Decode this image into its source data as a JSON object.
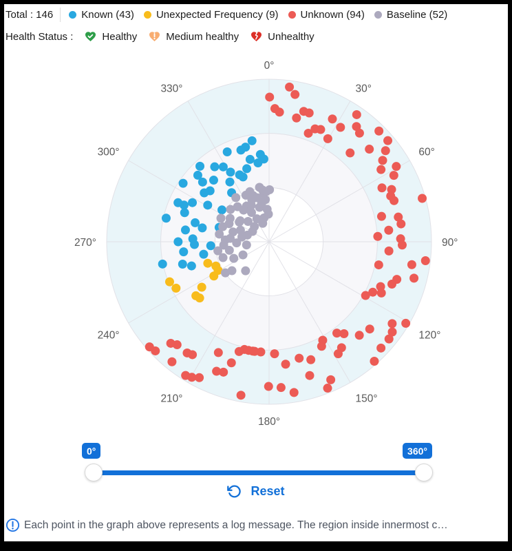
{
  "header": {
    "total_label": "Total : 146",
    "legend": [
      {
        "label": "Known (43)",
        "color": "#29A8E0"
      },
      {
        "label": "Unexpected Frequency (9)",
        "color": "#F8BC1C"
      },
      {
        "label": "Unknown (94)",
        "color": "#EC5B55"
      },
      {
        "label": "Baseline (52)",
        "color": "#ACA9BE"
      }
    ],
    "health_status_label": "Health Status :",
    "health_items": [
      {
        "label": "Healthy",
        "icon": "heart-check-icon",
        "color": "#2E9E49"
      },
      {
        "label": "Medium healthy",
        "icon": "heart-exclamation-icon",
        "color": "#F8AD71"
      },
      {
        "label": "Unhealthy",
        "icon": "heart-broken-icon",
        "color": "#DC2F27"
      }
    ]
  },
  "slider": {
    "min_label": "0°",
    "max_label": "360°",
    "reset_label": "Reset"
  },
  "footer": {
    "info_text": "Each point in the graph above represents a log message. The region inside innermost c…"
  },
  "colors": {
    "accent": "#1270D8",
    "grid": "#E1E1E7",
    "axis_label": "#595959",
    "ring_outer": "#E9F5F9",
    "ring_middle": "#F7F7FA",
    "ring_inner": "#FFFFFF",
    "info_icon": "#2577E4",
    "divider": "#DCDCDC"
  },
  "chart_data": {
    "type": "scatter",
    "coordinate_system": "polar",
    "angle_unit": "degrees",
    "angle_direction": "clockwise",
    "angle_start": "top",
    "angle_ticks": [
      "0°",
      "30°",
      "60°",
      "90°",
      "120°",
      "150°",
      "180°",
      "210°",
      "240°",
      "270°",
      "300°",
      "330°"
    ],
    "radius_range": [
      0,
      1
    ],
    "ring_fractions": [
      0.333,
      0.667,
      1
    ],
    "total": 146,
    "points_format": "[angle_deg, radius_norm]",
    "series": [
      {
        "id": "known",
        "name": "Known",
        "count": 43,
        "color": "#29A8E0",
        "points": [
          [
            350.4,
            0.63
          ],
          [
            335,
            0.61
          ],
          [
            342.9,
            0.59
          ],
          [
            346,
            0.6
          ],
          [
            354.3,
            0.54
          ],
          [
            356.4,
            0.51
          ],
          [
            352,
            0.49
          ],
          [
            317.5,
            0.63
          ],
          [
            328.5,
            0.54
          ],
          [
            304.2,
            0.64
          ],
          [
            311.9,
            0.55
          ],
          [
            310.8,
            0.48
          ],
          [
            326.7,
            0.44
          ],
          [
            322.6,
            0.38
          ],
          [
            336.2,
            0.45
          ],
          [
            338.1,
            0.43
          ],
          [
            293.2,
            0.61
          ],
          [
            293.3,
            0.57
          ],
          [
            300.8,
            0.44
          ],
          [
            304,
            0.35
          ],
          [
            282.9,
            0.65
          ],
          [
            284.4,
            0.47
          ],
          [
            281.7,
            0.42
          ],
          [
            272.2,
            0.47
          ],
          [
            286,
            0.32
          ],
          [
            258.2,
            0.67
          ],
          [
            255.5,
            0.55
          ],
          [
            252.7,
            0.5
          ],
          [
            263.3,
            0.53
          ],
          [
            267.9,
            0.46
          ],
          [
            259.2,
            0.41
          ],
          [
            266.1,
            0.36
          ],
          [
            347,
            0.52
          ],
          [
            343,
            0.47
          ],
          [
            331,
            0.49
          ],
          [
            324,
            0.57
          ],
          [
            318,
            0.51
          ],
          [
            313,
            0.6
          ],
          [
            307,
            0.5
          ],
          [
            297,
            0.53
          ],
          [
            289,
            0.55
          ],
          [
            278,
            0.52
          ],
          [
            270,
            0.56
          ]
        ]
      },
      {
        "id": "unexpected-frequency",
        "name": "Unexpected Frequency",
        "count": 9,
        "color": "#F8BC1C",
        "points": [
          [
            250.7,
            0.4
          ],
          [
            245.5,
            0.36
          ],
          [
            240.7,
            0.36
          ],
          [
            238.2,
            0.4
          ],
          [
            248.1,
            0.66
          ],
          [
            243.5,
            0.64
          ],
          [
            236,
            0.5
          ],
          [
            233.6,
            0.56
          ],
          [
            231,
            0.55
          ]
        ]
      },
      {
        "id": "unknown",
        "name": "Unknown",
        "count": 94,
        "color": "#EC5B55",
        "points": [
          [
            7.5,
            0.96
          ],
          [
            0.2,
            0.89
          ],
          [
            2.5,
            0.82
          ],
          [
            4.6,
            0.8
          ],
          [
            10,
            0.92
          ],
          [
            14.9,
            0.83
          ],
          [
            17.3,
            0.83
          ],
          [
            12.5,
            0.78
          ],
          [
            27.3,
            0.85
          ],
          [
            22.2,
            0.75
          ],
          [
            24.7,
            0.76
          ],
          [
            19.9,
            0.71
          ],
          [
            32,
            0.83
          ],
          [
            34.6,
            0.95
          ],
          [
            37.2,
            0.89
          ],
          [
            39.8,
            0.87
          ],
          [
            29.7,
            0.73
          ],
          [
            44.8,
            0.96
          ],
          [
            49.6,
            0.96
          ],
          [
            42.4,
            0.74
          ],
          [
            47.3,
            0.84
          ],
          [
            52,
            0.91
          ],
          [
            54.4,
            0.86
          ],
          [
            59.4,
            0.91
          ],
          [
            57.2,
            0.82
          ],
          [
            62,
            0.87
          ],
          [
            64.5,
            0.77
          ],
          [
            66.9,
            0.82
          ],
          [
            69.4,
            0.8
          ],
          [
            71.8,
            0.81
          ],
          [
            74.2,
            0.98
          ],
          [
            77.3,
            0.71
          ],
          [
            79.2,
            0.81
          ],
          [
            82.3,
            0.82
          ],
          [
            84.5,
            0.74
          ],
          [
            87.2,
            0.67
          ],
          [
            88.7,
            0.81
          ],
          [
            91.4,
            0.82
          ],
          [
            94.4,
            0.74
          ],
          [
            96.9,
            0.97
          ],
          [
            101.9,
            0.69
          ],
          [
            99.1,
            0.89
          ],
          [
            104.1,
            0.92
          ],
          [
            106.4,
            0.82
          ],
          [
            109,
            0.8
          ],
          [
            111.9,
            0.74
          ],
          [
            114.5,
            0.76
          ],
          [
            115.9,
            0.71
          ],
          [
            119.1,
            0.68
          ],
          [
            120.8,
            0.98
          ],
          [
            123.6,
            0.91
          ],
          [
            126.2,
            0.94
          ],
          [
            129,
            0.95
          ],
          [
            130.9,
            0.82
          ],
          [
            136,
            0.8
          ],
          [
            133.5,
            0.95
          ],
          [
            138.6,
            0.98
          ],
          [
            140.8,
            0.73
          ],
          [
            143.4,
            0.7
          ],
          [
            145.6,
            0.79
          ],
          [
            148.3,
            0.81
          ],
          [
            151.4,
            0.69
          ],
          [
            153.3,
            0.72
          ],
          [
            155.9,
            0.93
          ],
          [
            158.2,
            0.97
          ],
          [
            160.5,
            0.77
          ],
          [
            163.1,
            0.86
          ],
          [
            165.5,
            0.74
          ],
          [
            172.3,
            0.76
          ],
          [
            170.6,
            0.94
          ],
          [
            175.3,
            0.9
          ],
          [
            180.2,
            0.89
          ],
          [
            177.2,
            0.69
          ],
          [
            184.3,
            0.68
          ],
          [
            187.5,
            0.68
          ],
          [
            190.4,
            0.96
          ],
          [
            188.5,
            0.68
          ],
          [
            190.7,
            0.68
          ],
          [
            192.9,
            0.68
          ],
          [
            195.3,
            0.7
          ],
          [
            197.3,
            0.78
          ],
          [
            199.3,
            0.85
          ],
          [
            202.1,
            0.86
          ],
          [
            204.6,
            0.75
          ],
          [
            207.2,
            0.94
          ],
          [
            209.7,
            0.96
          ],
          [
            212,
            0.97
          ],
          [
            214.2,
            0.84
          ],
          [
            216.4,
            0.85
          ],
          [
            219,
            0.95
          ],
          [
            221.8,
            0.85
          ],
          [
            224.1,
            0.87
          ],
          [
            226.2,
            0.97
          ],
          [
            228.7,
            0.98
          ]
        ]
      },
      {
        "id": "baseline",
        "name": "Baseline",
        "count": 52,
        "color": "#ACA9BE",
        "points": [
          [
            353.8,
            0.3
          ],
          [
            341,
            0.3
          ],
          [
            333.5,
            0.32
          ],
          [
            337.7,
            0.28
          ],
          [
            356.6,
            0.2
          ],
          [
            344.5,
            0.22
          ],
          [
            327.7,
            0.26
          ],
          [
            321.1,
            0.25
          ],
          [
            303.5,
            0.22
          ],
          [
            294.3,
            0.27
          ],
          [
            285.2,
            0.23
          ],
          [
            272.4,
            0.27
          ],
          [
            278.7,
            0.31
          ],
          [
            265.7,
            0.28
          ],
          [
            257.9,
            0.25
          ],
          [
            244.8,
            0.24
          ],
          [
            234.6,
            0.33
          ],
          [
            232.1,
            0.29
          ],
          [
            243.3,
            0.18
          ],
          [
            219,
            0.23
          ],
          [
            352.9,
            0.32
          ],
          [
            358.6,
            0.17
          ],
          [
            0.5,
            0.32
          ],
          [
            260,
            0.32
          ],
          [
            268,
            0.2
          ],
          [
            275,
            0.24
          ],
          [
            280,
            0.17
          ],
          [
            288,
            0.3
          ],
          [
            292,
            0.19
          ],
          [
            296,
            0.33
          ],
          [
            301,
            0.28
          ],
          [
            306,
            0.22
          ],
          [
            310,
            0.31
          ],
          [
            314,
            0.18
          ],
          [
            318,
            0.29
          ],
          [
            323,
            0.34
          ],
          [
            329,
            0.21
          ],
          [
            334,
            0.25
          ],
          [
            339,
            0.33
          ],
          [
            345,
            0.28
          ],
          [
            349,
            0.24
          ],
          [
            350,
            0.34
          ],
          [
            355,
            0.26
          ],
          [
            357,
            0.31
          ],
          [
            348,
            0.15
          ],
          [
            341,
            0.12
          ],
          [
            332,
            0.16
          ],
          [
            316,
            0.13
          ],
          [
            302,
            0.12
          ],
          [
            287,
            0.14
          ],
          [
            262,
            0.14
          ],
          [
            251,
            0.3
          ]
        ]
      }
    ]
  }
}
